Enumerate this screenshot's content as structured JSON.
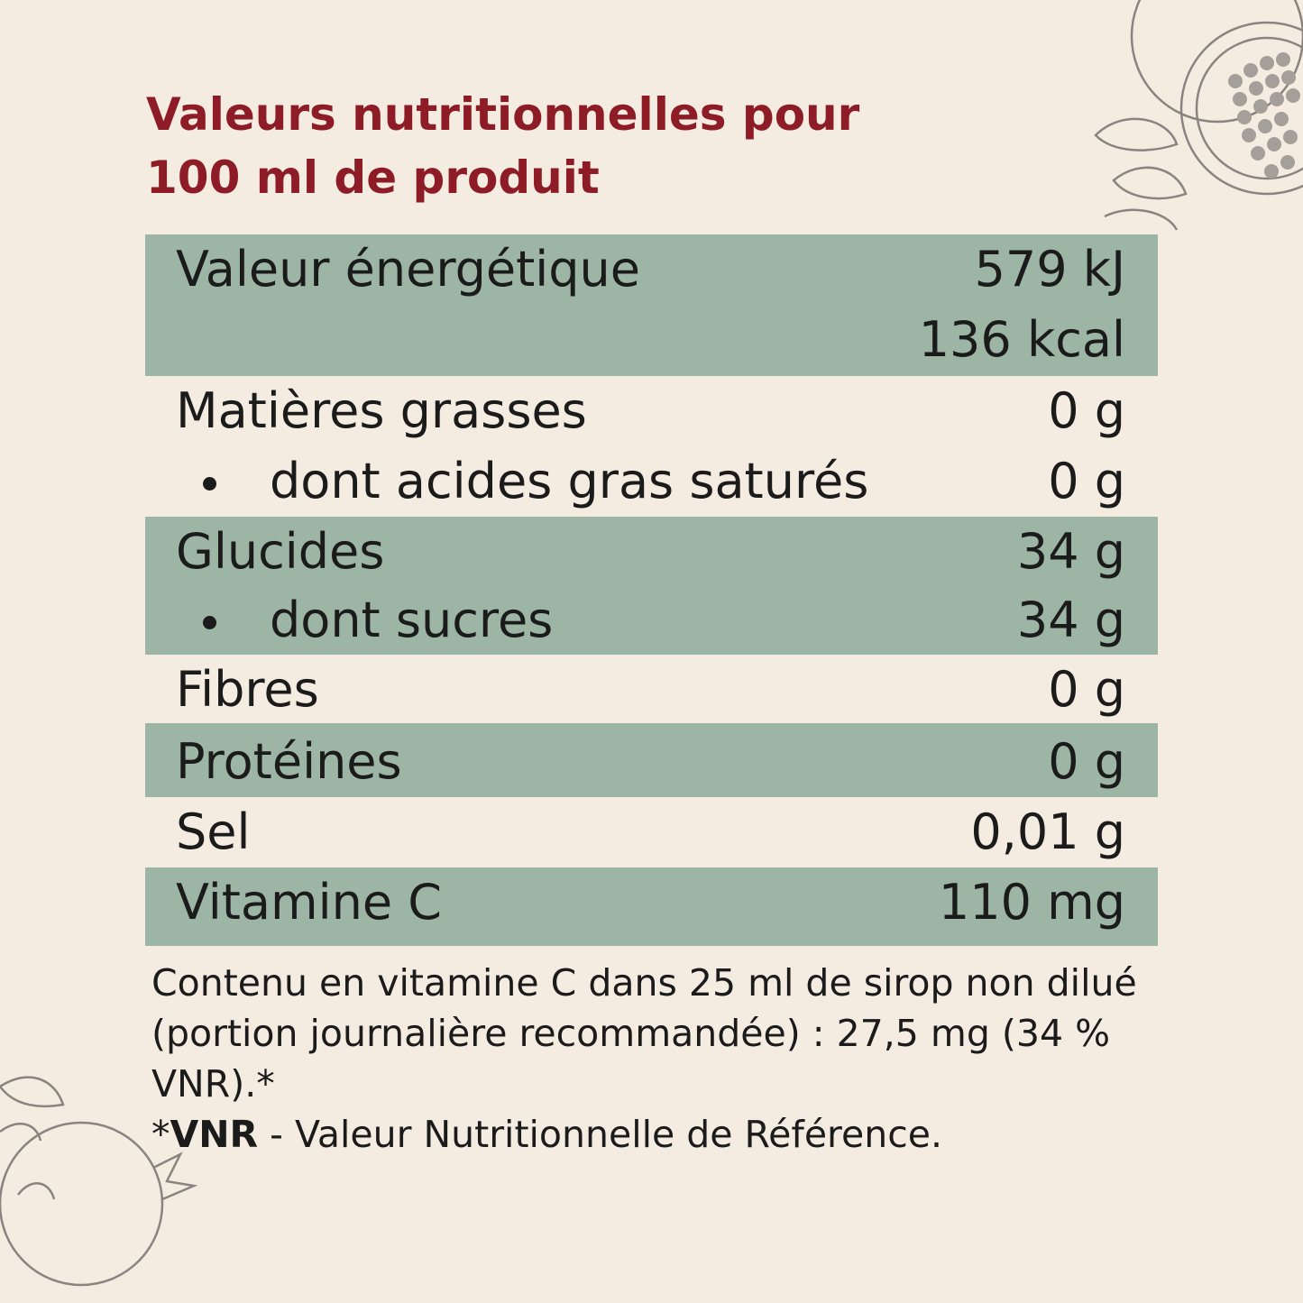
{
  "title": {
    "line1": "Valeurs nutritionnelles pour",
    "line2": "100 ml de produit"
  },
  "rows": {
    "energy": {
      "label": "Valeur énergétique",
      "value_kj": "579 kJ",
      "value_kcal": "136 kcal"
    },
    "fat": {
      "label": "Matières grasses",
      "value": "0 g"
    },
    "saturated": {
      "label": "dont acides gras saturés",
      "value": "0 g"
    },
    "carbs": {
      "label": "Glucides",
      "value": "34 g"
    },
    "sugars": {
      "label": "dont sucres",
      "value": "34 g"
    },
    "fiber": {
      "label": "Fibres",
      "value": "0 g"
    },
    "protein": {
      "label": "Protéines",
      "value": "0 g"
    },
    "salt": {
      "label": "Sel",
      "value": "0,01 g"
    },
    "vitc": {
      "label": "Vitamine C",
      "value": "110 mg"
    }
  },
  "note": {
    "text": "Contenu en vitamine C dans 25 ml de sirop non dilué (portion journalière recommandée) : 27,5 mg (34 % VNR).*",
    "footnote_prefix": "*",
    "footnote_abbr": "VNR",
    "footnote_rest": " - Valeur Nutritionnelle de Référence."
  },
  "colors": {
    "background": "#f5ece1",
    "title": "#8e1c26",
    "row_shade": "#9cb5a5",
    "text": "#1b1b1b"
  },
  "icons": {
    "top_right": "pomegranate-illustration-icon",
    "bottom_left": "pomegranate-illustration-icon"
  }
}
